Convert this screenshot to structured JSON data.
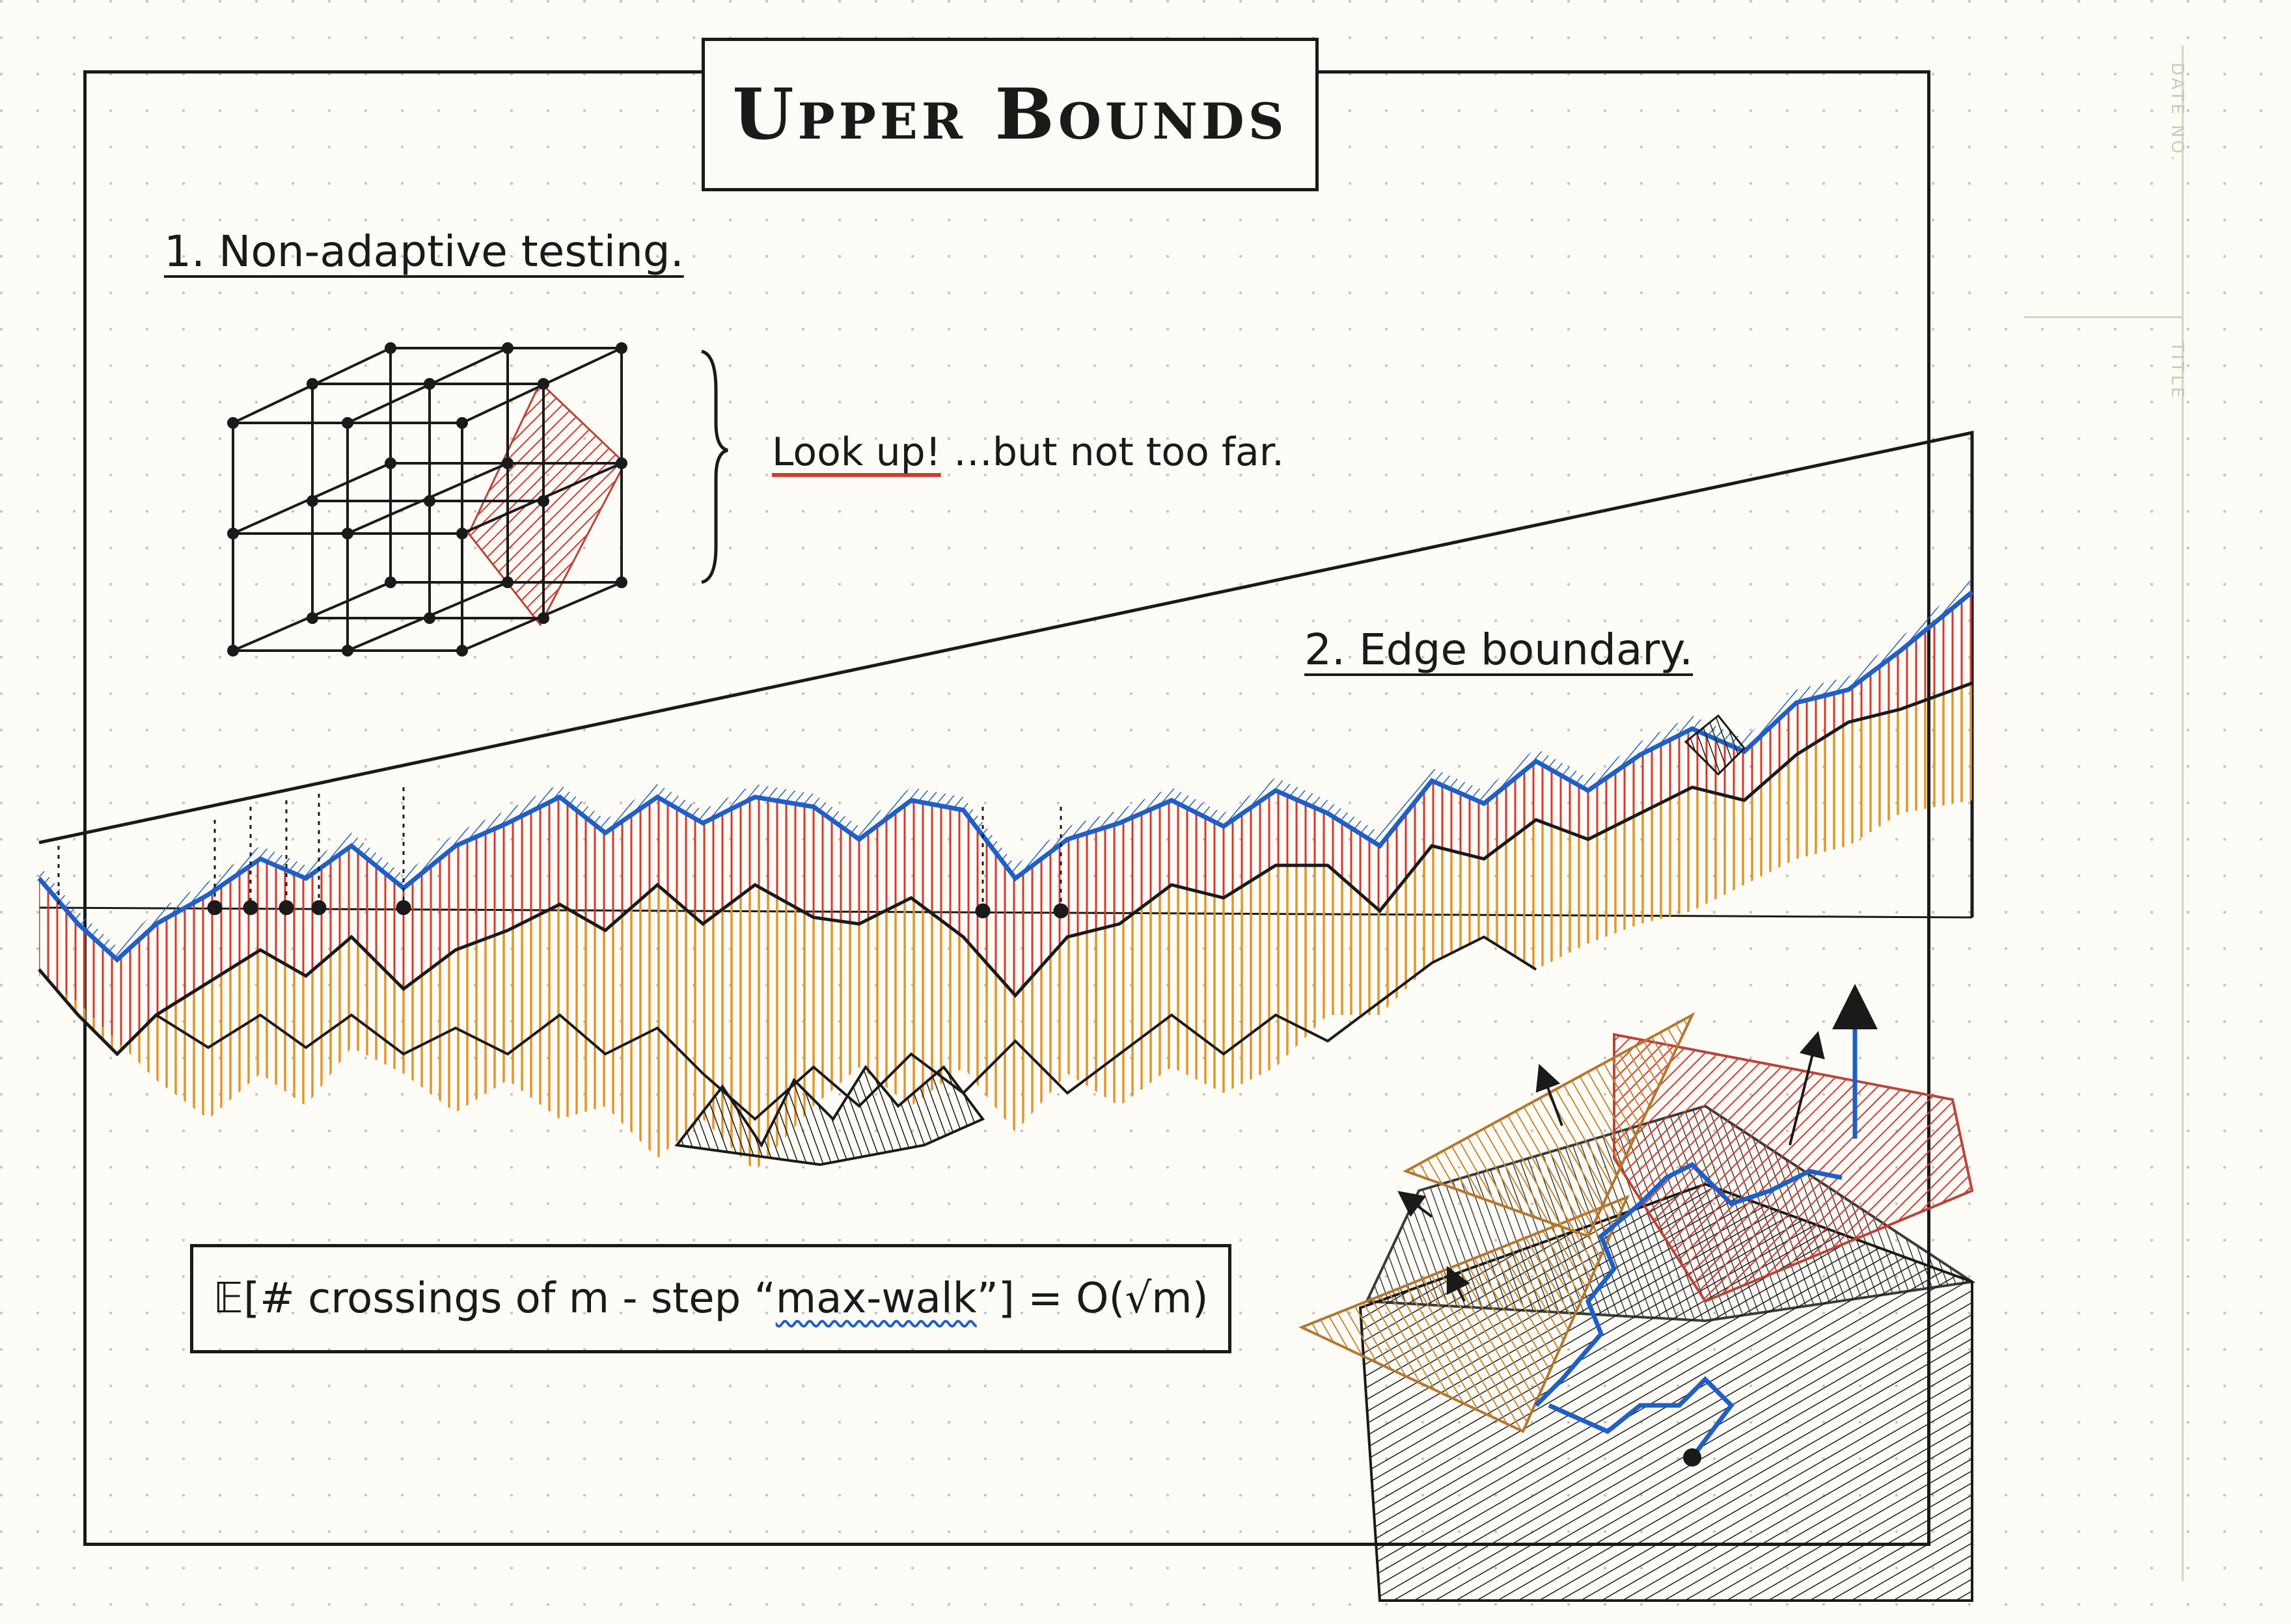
{
  "page_title": "Upper Bounds",
  "section1": {
    "heading": "1. Non-adaptive testing.",
    "note_lookup": "Look up!",
    "note_rest": " …but not too far."
  },
  "section2": {
    "heading": "2. Edge boundary."
  },
  "formula": {
    "prefix": "𝔼[# crossings of  m - step “",
    "term": "max-walk",
    "suffix": "”] = O(√m)"
  },
  "sidebar": {
    "date_label": "DATE NO.",
    "title_label": "TITLE"
  },
  "colors": {
    "ink": "#1a1a1a",
    "red": "#d23a2e",
    "blue": "#1f5fc7",
    "orange": "#e0962a",
    "paper": "#fdfcf7"
  },
  "icons": [
    "arrow-icon",
    "lattice-cube-icon",
    "brace-icon"
  ]
}
